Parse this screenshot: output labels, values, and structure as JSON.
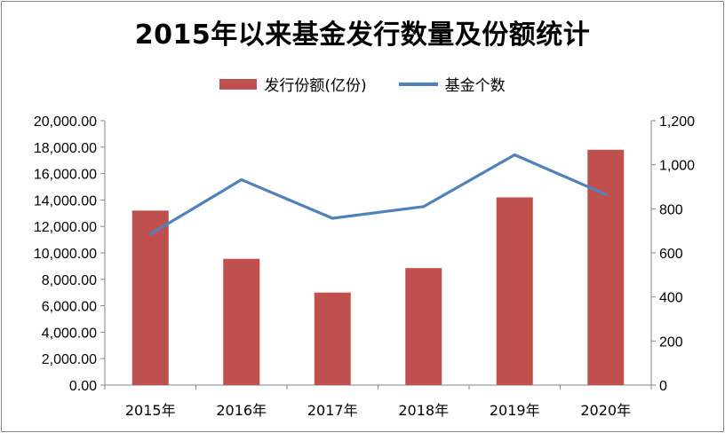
{
  "title": "2015年以来基金发行数量及份额统计",
  "colors": {
    "bar": "#c0504d",
    "line": "#4f81bd",
    "axis": "#868686"
  },
  "chart_data": {
    "type": "bar",
    "title": "2015年以来基金发行数量及份额统计",
    "categories": [
      "2015年",
      "2016年",
      "2017年",
      "2018年",
      "2019年",
      "2020年"
    ],
    "series": [
      {
        "name": "发行份额(亿份)",
        "type": "bar",
        "axis": "left",
        "values": [
          13200,
          9550,
          7000,
          8850,
          14200,
          17800
        ]
      },
      {
        "name": "基金个数",
        "type": "line",
        "axis": "right",
        "values": [
          685,
          932,
          757,
          810,
          1045,
          865
        ]
      }
    ],
    "y_left": {
      "min": 0,
      "max": 20000,
      "ticks": [
        "0.00",
        "2,000.00",
        "4,000.00",
        "6,000.00",
        "8,000.00",
        "10,000.00",
        "12,000.00",
        "14,000.00",
        "16,000.00",
        "18,000.00",
        "20,000.00"
      ]
    },
    "y_right": {
      "min": 0,
      "max": 1200,
      "ticks": [
        "0",
        "200",
        "400",
        "600",
        "800",
        "1,000",
        "1,200"
      ]
    },
    "legend_position": "top",
    "grid": false
  }
}
